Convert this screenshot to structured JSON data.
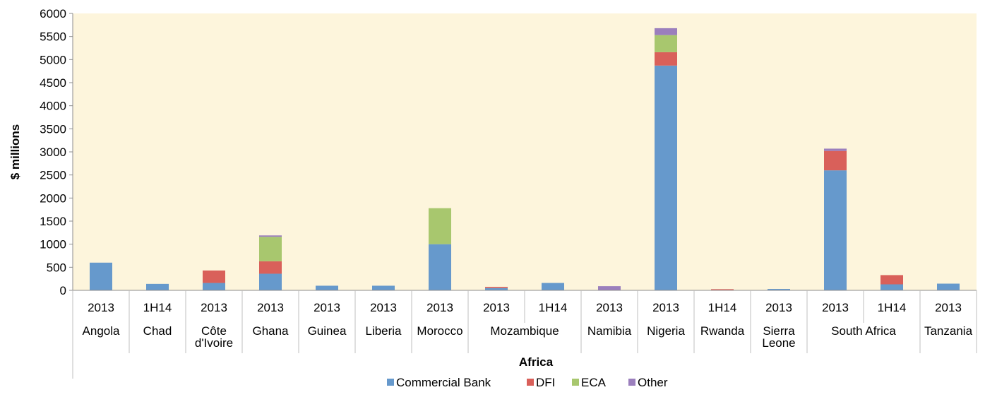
{
  "chart_data": {
    "type": "bar",
    "stacked": true,
    "title": "",
    "ylabel": "$ millions",
    "xlabel": "Africa",
    "ylim": [
      0,
      6000
    ],
    "yticks": [
      0,
      500,
      1000,
      1500,
      2000,
      2500,
      3000,
      3500,
      4000,
      4500,
      5000,
      5500,
      6000
    ],
    "grid": false,
    "legend_position": "bottom",
    "plot_background": "#fdf5dc",
    "categories": [
      "2013",
      "1H14",
      "2013",
      "2013",
      "2013",
      "2013",
      "2013",
      "2013",
      "1H14",
      "2013",
      "2013",
      "1H14",
      "2013",
      "2013",
      "1H14",
      "2013"
    ],
    "groups": [
      {
        "label": "Angola",
        "span": 1
      },
      {
        "label": "Chad",
        "span": 1
      },
      {
        "label": "Côte\nd'Ivoire",
        "span": 1
      },
      {
        "label": "Ghana",
        "span": 1
      },
      {
        "label": "Guinea",
        "span": 1
      },
      {
        "label": "Liberia",
        "span": 1
      },
      {
        "label": "Morocco",
        "span": 1
      },
      {
        "label": "Mozambique",
        "span": 2
      },
      {
        "label": "Namibia",
        "span": 1
      },
      {
        "label": "Nigeria",
        "span": 1
      },
      {
        "label": "Rwanda",
        "span": 1
      },
      {
        "label": "Sierra\nLeone",
        "span": 1
      },
      {
        "label": "South Africa",
        "span": 2
      },
      {
        "label": "Tanzania",
        "span": 1
      }
    ],
    "series": [
      {
        "name": "Commercial Bank",
        "color": "#6699cc",
        "values": [
          600,
          140,
          160,
          360,
          100,
          100,
          1000,
          50,
          160,
          0,
          4870,
          0,
          30,
          2600,
          130,
          145
        ]
      },
      {
        "name": "DFI",
        "color": "#d9605a",
        "values": [
          0,
          0,
          270,
          270,
          0,
          0,
          0,
          25,
          0,
          0,
          290,
          25,
          0,
          420,
          200,
          0
        ]
      },
      {
        "name": "ECA",
        "color": "#a8c76e",
        "values": [
          0,
          0,
          0,
          530,
          0,
          0,
          780,
          0,
          0,
          0,
          370,
          0,
          0,
          0,
          0,
          0
        ]
      },
      {
        "name": "Other",
        "color": "#9b7fbd",
        "values": [
          0,
          0,
          0,
          30,
          0,
          0,
          0,
          0,
          0,
          90,
          150,
          0,
          0,
          50,
          0,
          0
        ]
      }
    ]
  }
}
